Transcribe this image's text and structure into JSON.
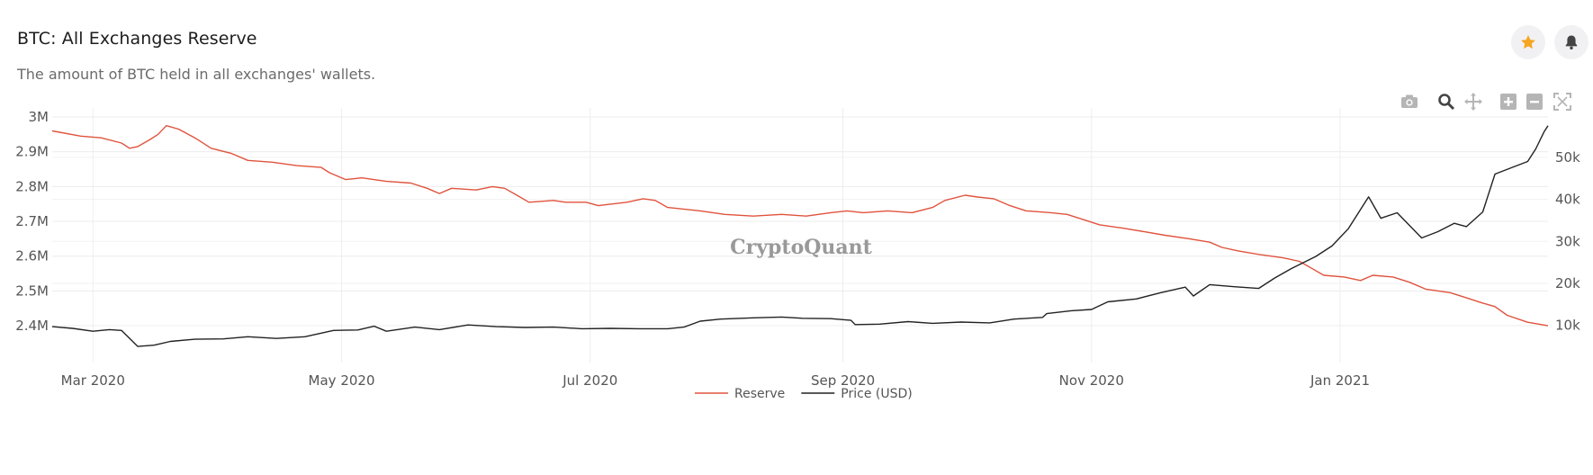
{
  "header": {
    "title": "BTC: All Exchanges Reserve",
    "subtitle": "The amount of BTC held in all exchanges' wallets."
  },
  "actions": {
    "favorite_icon": "star-icon",
    "alert_icon": "bell-icon",
    "favorite_color": "#f5a623"
  },
  "modebar": [
    "camera-icon",
    "zoom-icon",
    "pan-icon",
    "zoom-in-icon",
    "zoom-out-icon",
    "autoscale-icon"
  ],
  "watermark": "CryptoQuant",
  "chart_data": {
    "type": "line",
    "title": "BTC: All Exchanges Reserve",
    "x_range": [
      "2020-02-20",
      "2021-02-21"
    ],
    "x_ticks": [
      {
        "date": "2020-03-01",
        "label": "Mar 2020"
      },
      {
        "date": "2020-05-01",
        "label": "May 2020"
      },
      {
        "date": "2020-07-01",
        "label": "Jul 2020"
      },
      {
        "date": "2020-09-01",
        "label": "Sep 2020"
      },
      {
        "date": "2020-11-01",
        "label": "Nov 2020"
      },
      {
        "date": "2021-01-01",
        "label": "Jan 2021"
      }
    ],
    "y_left": {
      "range": [
        2.32,
        3.0
      ],
      "ticks": [
        {
          "value": 3.0,
          "label": "3M"
        },
        {
          "value": 2.9,
          "label": "2.9M"
        },
        {
          "value": 2.8,
          "label": "2.8M"
        },
        {
          "value": 2.7,
          "label": "2.7M"
        },
        {
          "value": 2.6,
          "label": "2.6M"
        },
        {
          "value": 2.5,
          "label": "2.5M"
        },
        {
          "value": 2.4,
          "label": "2.4M"
        }
      ]
    },
    "y_right": {
      "range": [
        3.3,
        59.6
      ],
      "ticks": [
        {
          "value": 10,
          "label": "10k"
        },
        {
          "value": 20,
          "label": "20k"
        },
        {
          "value": 30,
          "label": "30k"
        },
        {
          "value": 40,
          "label": "40k"
        },
        {
          "value": 50,
          "label": "50k"
        }
      ]
    },
    "series": [
      {
        "name": "Reserve",
        "color": "#e0533d",
        "axis": "left",
        "unit": "M BTC",
        "points": [
          [
            "2020-02-20",
            2.96
          ],
          [
            "2020-02-27",
            2.945
          ],
          [
            "2020-03-03",
            2.94
          ],
          [
            "2020-03-08",
            2.925
          ],
          [
            "2020-03-10",
            2.91
          ],
          [
            "2020-03-12",
            2.915
          ],
          [
            "2020-03-15",
            2.935
          ],
          [
            "2020-03-17",
            2.95
          ],
          [
            "2020-03-19",
            2.975
          ],
          [
            "2020-03-22",
            2.965
          ],
          [
            "2020-03-26",
            2.94
          ],
          [
            "2020-03-30",
            2.91
          ],
          [
            "2020-04-04",
            2.895
          ],
          [
            "2020-04-08",
            2.875
          ],
          [
            "2020-04-14",
            2.87
          ],
          [
            "2020-04-20",
            2.86
          ],
          [
            "2020-04-26",
            2.855
          ],
          [
            "2020-04-28",
            2.84
          ],
          [
            "2020-05-02",
            2.82
          ],
          [
            "2020-05-06",
            2.825
          ],
          [
            "2020-05-12",
            2.815
          ],
          [
            "2020-05-18",
            2.81
          ],
          [
            "2020-05-22",
            2.795
          ],
          [
            "2020-05-25",
            2.78
          ],
          [
            "2020-05-28",
            2.795
          ],
          [
            "2020-06-03",
            2.79
          ],
          [
            "2020-06-07",
            2.8
          ],
          [
            "2020-06-10",
            2.795
          ],
          [
            "2020-06-13",
            2.775
          ],
          [
            "2020-06-16",
            2.755
          ],
          [
            "2020-06-22",
            2.76
          ],
          [
            "2020-06-25",
            2.755
          ],
          [
            "2020-06-30",
            2.755
          ],
          [
            "2020-07-03",
            2.745
          ],
          [
            "2020-07-10",
            2.755
          ],
          [
            "2020-07-14",
            2.765
          ],
          [
            "2020-07-17",
            2.76
          ],
          [
            "2020-07-20",
            2.74
          ],
          [
            "2020-07-28",
            2.73
          ],
          [
            "2020-08-03",
            2.72
          ],
          [
            "2020-08-10",
            2.715
          ],
          [
            "2020-08-17",
            2.72
          ],
          [
            "2020-08-23",
            2.715
          ],
          [
            "2020-08-29",
            2.725
          ],
          [
            "2020-09-02",
            2.73
          ],
          [
            "2020-09-06",
            2.725
          ],
          [
            "2020-09-12",
            2.73
          ],
          [
            "2020-09-18",
            2.725
          ],
          [
            "2020-09-23",
            2.74
          ],
          [
            "2020-09-26",
            2.76
          ],
          [
            "2020-10-01",
            2.775
          ],
          [
            "2020-10-04",
            2.77
          ],
          [
            "2020-10-08",
            2.765
          ],
          [
            "2020-10-12",
            2.745
          ],
          [
            "2020-10-16",
            2.73
          ],
          [
            "2020-10-22",
            2.725
          ],
          [
            "2020-10-26",
            2.72
          ],
          [
            "2020-10-30",
            2.705
          ],
          [
            "2020-11-03",
            2.69
          ],
          [
            "2020-11-09",
            2.68
          ],
          [
            "2020-11-14",
            2.67
          ],
          [
            "2020-11-19",
            2.66
          ],
          [
            "2020-11-25",
            2.65
          ],
          [
            "2020-11-30",
            2.64
          ],
          [
            "2020-12-03",
            2.625
          ],
          [
            "2020-12-07",
            2.615
          ],
          [
            "2020-12-12",
            2.605
          ],
          [
            "2020-12-18",
            2.595
          ],
          [
            "2020-12-22",
            2.585
          ],
          [
            "2020-12-25",
            2.565
          ],
          [
            "2020-12-28",
            2.545
          ],
          [
            "2021-01-02",
            2.54
          ],
          [
            "2021-01-06",
            2.53
          ],
          [
            "2021-01-09",
            2.545
          ],
          [
            "2021-01-14",
            2.54
          ],
          [
            "2021-01-18",
            2.525
          ],
          [
            "2021-01-22",
            2.505
          ],
          [
            "2021-01-28",
            2.495
          ],
          [
            "2021-02-01",
            2.48
          ],
          [
            "2021-02-05",
            2.465
          ],
          [
            "2021-02-08",
            2.455
          ],
          [
            "2021-02-11",
            2.43
          ],
          [
            "2021-02-16",
            2.41
          ],
          [
            "2021-02-21",
            2.4
          ]
        ]
      },
      {
        "name": "Price (USD)",
        "color": "#222222",
        "axis": "right",
        "unit": "k USD",
        "points": [
          [
            "2020-02-20",
            9.7
          ],
          [
            "2020-02-25",
            9.3
          ],
          [
            "2020-03-01",
            8.6
          ],
          [
            "2020-03-05",
            9.0
          ],
          [
            "2020-03-08",
            8.8
          ],
          [
            "2020-03-12",
            5.0
          ],
          [
            "2020-03-16",
            5.3
          ],
          [
            "2020-03-20",
            6.2
          ],
          [
            "2020-03-26",
            6.7
          ],
          [
            "2020-04-02",
            6.8
          ],
          [
            "2020-04-08",
            7.3
          ],
          [
            "2020-04-15",
            6.9
          ],
          [
            "2020-04-22",
            7.3
          ],
          [
            "2020-04-29",
            8.8
          ],
          [
            "2020-05-05",
            8.9
          ],
          [
            "2020-05-09",
            9.8
          ],
          [
            "2020-05-12",
            8.6
          ],
          [
            "2020-05-19",
            9.6
          ],
          [
            "2020-05-25",
            9.0
          ],
          [
            "2020-06-01",
            10.1
          ],
          [
            "2020-06-08",
            9.7
          ],
          [
            "2020-06-15",
            9.5
          ],
          [
            "2020-06-22",
            9.6
          ],
          [
            "2020-06-29",
            9.2
          ],
          [
            "2020-07-06",
            9.3
          ],
          [
            "2020-07-13",
            9.2
          ],
          [
            "2020-07-20",
            9.2
          ],
          [
            "2020-07-24",
            9.6
          ],
          [
            "2020-07-28",
            11.0
          ],
          [
            "2020-08-02",
            11.5
          ],
          [
            "2020-08-10",
            11.8
          ],
          [
            "2020-08-17",
            12.0
          ],
          [
            "2020-08-22",
            11.7
          ],
          [
            "2020-08-29",
            11.6
          ],
          [
            "2020-09-03",
            11.2
          ],
          [
            "2020-09-04",
            10.2
          ],
          [
            "2020-09-10",
            10.3
          ],
          [
            "2020-09-17",
            10.9
          ],
          [
            "2020-09-23",
            10.5
          ],
          [
            "2020-09-30",
            10.8
          ],
          [
            "2020-10-07",
            10.6
          ],
          [
            "2020-10-13",
            11.5
          ],
          [
            "2020-10-20",
            11.9
          ],
          [
            "2020-10-21",
            12.8
          ],
          [
            "2020-10-27",
            13.5
          ],
          [
            "2020-11-01",
            13.8
          ],
          [
            "2020-11-05",
            15.6
          ],
          [
            "2020-11-12",
            16.3
          ],
          [
            "2020-11-18",
            17.8
          ],
          [
            "2020-11-24",
            19.1
          ],
          [
            "2020-11-26",
            17.0
          ],
          [
            "2020-11-30",
            19.7
          ],
          [
            "2020-12-06",
            19.2
          ],
          [
            "2020-12-12",
            18.8
          ],
          [
            "2020-12-16",
            21.3
          ],
          [
            "2020-12-20",
            23.5
          ],
          [
            "2020-12-26",
            26.4
          ],
          [
            "2020-12-30",
            28.9
          ],
          [
            "2021-01-03",
            33.0
          ],
          [
            "2021-01-08",
            40.6
          ],
          [
            "2021-01-11",
            35.5
          ],
          [
            "2021-01-15",
            36.8
          ],
          [
            "2021-01-21",
            30.8
          ],
          [
            "2021-01-25",
            32.3
          ],
          [
            "2021-01-29",
            34.3
          ],
          [
            "2021-02-01",
            33.5
          ],
          [
            "2021-02-05",
            37.0
          ],
          [
            "2021-02-08",
            46.0
          ],
          [
            "2021-02-12",
            47.5
          ],
          [
            "2021-02-16",
            49.0
          ],
          [
            "2021-02-18",
            52.0
          ],
          [
            "2021-02-20",
            56.0
          ],
          [
            "2021-02-21",
            57.5
          ]
        ]
      }
    ],
    "legend": [
      "Reserve",
      "Price (USD)"
    ],
    "legend_position": "bottom-center",
    "grid": true
  }
}
